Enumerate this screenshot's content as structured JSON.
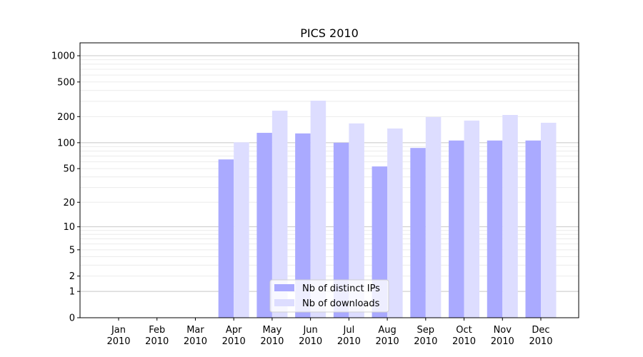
{
  "chart_data": {
    "type": "bar",
    "title": "PICS 2010",
    "xlabel": "",
    "ylabel": "",
    "yscale": "log10(1+y)",
    "ylim": [
      0,
      1400
    ],
    "yticks": [
      0,
      1,
      2,
      5,
      10,
      20,
      50,
      100,
      200,
      500,
      1000
    ],
    "categories": [
      "Jan\n2010",
      "Feb\n2010",
      "Mar\n2010",
      "Apr\n2010",
      "May\n2010",
      "Jun\n2010",
      "Jul\n2010",
      "Aug\n2010",
      "Sep\n2010",
      "Oct\n2010",
      "Nov\n2010",
      "Dec\n2010"
    ],
    "series": [
      {
        "name": "Nb of distinct IPs",
        "color": "#aaaaff",
        "values": [
          0,
          0,
          0,
          64,
          130,
          128,
          100,
          53,
          87,
          106,
          106,
          106
        ]
      },
      {
        "name": "Nb of downloads",
        "color": "#ddddff",
        "values": [
          0,
          0,
          0,
          101,
          234,
          305,
          167,
          146,
          198,
          180,
          209,
          170
        ]
      }
    ],
    "grid": true,
    "legend_position": "bottom-center"
  }
}
